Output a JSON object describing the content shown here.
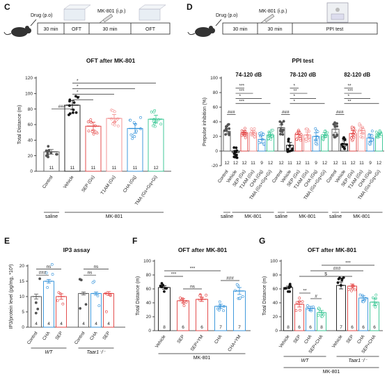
{
  "colors": {
    "control": "#555555",
    "vehicle": "#111111",
    "sep": "#e23b3b",
    "t1am": "#f28a8a",
    "cha": "#2d8fd9",
    "tma": "#2ec48e",
    "cha_ym": "#2d8fd9"
  },
  "panels": {
    "C": {
      "letter": "C",
      "timeline": {
        "drug_label": "Drug (p.o)",
        "mk_label": "MK-801 (i.p.)",
        "boxes": [
          "30 min",
          "OFT",
          "30 min",
          "OFT"
        ]
      }
    },
    "D": {
      "letter": "D",
      "timeline": {
        "drug_label": "Drug (p.o)",
        "mk_label": "MK-801 (i.p.)",
        "boxes": [
          "30 min",
          "30 min",
          "PPI test"
        ]
      }
    },
    "E": {
      "letter": "E"
    },
    "F": {
      "letter": "F"
    },
    "G": {
      "letter": "G"
    }
  },
  "chart_data": [
    {
      "id": "C",
      "type": "bar",
      "title": "OFT after MK-801",
      "ylabel": "Total Distance (m)",
      "ylim": [
        0,
        120
      ],
      "yticks": [
        0,
        20,
        40,
        60,
        80,
        100,
        120
      ],
      "categories": [
        "Control",
        "Vehicle",
        "SEP (Gs)",
        "T1AM (Gs)",
        "CHA (Gq)",
        "TMA (Gs+Gq+Gi)"
      ],
      "values": [
        25,
        85,
        58,
        68,
        55,
        67
      ],
      "errors": [
        3,
        6,
        5,
        5,
        6,
        5
      ],
      "n": [
        "11",
        "11",
        "11",
        "11",
        "11",
        "12"
      ],
      "color_keys": [
        "control",
        "vehicle",
        "sep",
        "t1am",
        "cha",
        "tma"
      ],
      "groups": [
        {
          "label": "saline",
          "from": 0,
          "to": 0
        },
        {
          "label": "MK-801",
          "from": 1,
          "to": 5
        }
      ],
      "significance": [
        {
          "from": 0,
          "to": 1,
          "label": "###"
        },
        {
          "from": 1,
          "to": 2,
          "label": "**"
        },
        {
          "from": 1,
          "to": 3,
          "label": "*"
        },
        {
          "from": 1,
          "to": 4,
          "label": "*"
        },
        {
          "from": 1,
          "to": 5,
          "label": "*"
        }
      ]
    },
    {
      "id": "D",
      "type": "bar",
      "title": "PPI test",
      "ylabel": "Prepulse inhibition (%)",
      "ylim": [
        -20,
        100
      ],
      "yticks": [
        -20,
        0,
        20,
        40,
        60,
        80,
        100
      ],
      "subgroups": [
        {
          "label": "74-120 dB",
          "categories": [
            "Control",
            "Vehicle",
            "SEP (Gs)",
            "T1AM (Gs)",
            "CHA (Gq)",
            "TMA (Gs+Gq+Gi)"
          ],
          "values": [
            27,
            -2,
            25,
            25,
            16,
            22
          ],
          "errors": [
            4,
            3,
            3,
            3,
            5,
            3
          ],
          "n": [
            "12",
            "12",
            "12",
            "11",
            "9",
            "12"
          ],
          "significance": [
            {
              "from": 0,
              "to": 1,
              "label": "###"
            },
            {
              "from": 1,
              "to": 2,
              "label": "***"
            },
            {
              "from": 1,
              "to": 3,
              "label": "***"
            },
            {
              "from": 1,
              "to": 4,
              "label": "*"
            },
            {
              "from": 1,
              "to": 5,
              "label": "***"
            }
          ]
        },
        {
          "label": "78-120 dB",
          "categories": [
            "Control",
            "Vehicle",
            "SEP (Gs)",
            "T1AM (Gs)",
            "CHA (Gq)",
            "TMA (Gs+Gq+Gi)"
          ],
          "values": [
            32,
            8,
            23,
            22,
            20,
            22
          ],
          "errors": [
            4,
            4,
            4,
            4,
            5,
            3
          ],
          "n": [
            "12",
            "11",
            "12",
            "11",
            "9",
            "12"
          ],
          "significance": [
            {
              "from": 0,
              "to": 1,
              "label": "###"
            },
            {
              "from": 1,
              "to": 2,
              "label": "*"
            },
            {
              "from": 1,
              "to": 3,
              "label": "**"
            },
            {
              "from": 1,
              "to": 4,
              "label": "*"
            },
            {
              "from": 1,
              "to": 5,
              "label": "*"
            }
          ]
        },
        {
          "label": "82-120 dB",
          "categories": [
            "Control",
            "Vehicle",
            "SEP (Gs)",
            "T1AM (Gs)",
            "CHA (Gq)",
            "TMA (Gs+Gq+Gi)"
          ],
          "values": [
            30,
            10,
            24,
            28,
            18,
            22
          ],
          "errors": [
            5,
            4,
            4,
            4,
            5,
            3
          ],
          "n": [
            "12",
            "11",
            "12",
            "11",
            "9",
            "12"
          ],
          "significance": [
            {
              "from": 0,
              "to": 1,
              "label": "###"
            },
            {
              "from": 1,
              "to": 2,
              "label": "**"
            },
            {
              "from": 1,
              "to": 3,
              "label": "***"
            },
            {
              "from": 1,
              "to": 4,
              "label": "*"
            },
            {
              "from": 1,
              "to": 5,
              "label": "**"
            }
          ]
        }
      ],
      "color_keys": [
        "control",
        "vehicle",
        "sep",
        "t1am",
        "cha",
        "tma"
      ],
      "groups": [
        {
          "label": "saline",
          "from": 0,
          "to": 0
        },
        {
          "label": "MK-801",
          "from": 1,
          "to": 5
        }
      ]
    },
    {
      "id": "E",
      "type": "bar",
      "title": "IP3  assay",
      "ylabel": "IP3/protein level (pg/mg, *10³)",
      "ylim": [
        0,
        20
      ],
      "yticks": [
        0,
        5,
        10,
        15,
        20
      ],
      "categories": [
        "Control",
        "CHA",
        "SEP",
        "Control",
        "CHA",
        "SEP"
      ],
      "values": [
        10,
        15,
        10,
        11,
        11,
        11
      ],
      "errors": [
        0.8,
        0.6,
        0.9,
        0.5,
        0.5,
        0.6
      ],
      "n": [
        "4",
        "4",
        "4",
        "4",
        "4",
        "4"
      ],
      "color_keys": [
        "control",
        "cha",
        "sep",
        "control",
        "cha",
        "sep"
      ],
      "genotypes": [
        {
          "label": "WT",
          "from": 0,
          "to": 2
        },
        {
          "label": "Taar1⁻/⁻",
          "from": 3,
          "to": 5
        }
      ],
      "significance": [
        {
          "from": 0,
          "to": 1,
          "label": "###"
        },
        {
          "from": 0,
          "to": 2,
          "label": "ns"
        },
        {
          "from": 3,
          "to": 4,
          "label": "ns"
        },
        {
          "from": 3,
          "to": 5,
          "label": "ns"
        }
      ]
    },
    {
      "id": "F",
      "type": "bar",
      "title": "OFT after MK-801",
      "ylabel": "Total Distance (m)",
      "ylim": [
        0,
        100
      ],
      "yticks": [
        0,
        20,
        40,
        60,
        80,
        100
      ],
      "categories": [
        "Vehicle",
        "SEP",
        "SEP+YM",
        "CHA",
        "CHA+YM"
      ],
      "values": [
        62,
        43,
        45,
        35,
        57
      ],
      "errors": [
        2.5,
        3,
        3,
        3,
        5
      ],
      "n": [
        "8",
        "6",
        "6",
        "7",
        "7"
      ],
      "color_keys": [
        "vehicle",
        "sep",
        "sep",
        "cha",
        "cha_ym"
      ],
      "groups": [
        {
          "label": "MK-801",
          "from": 0,
          "to": 4
        }
      ],
      "significance": [
        {
          "from": 0,
          "to": 1,
          "label": "***"
        },
        {
          "from": 1,
          "to": 2,
          "label": "ns"
        },
        {
          "from": 0,
          "to": 3,
          "label": "***"
        },
        {
          "from": 3,
          "to": 4,
          "label": "###"
        }
      ]
    },
    {
      "id": "G",
      "type": "bar",
      "title": "OFT after MK-801",
      "ylabel": "Total Distance (m)",
      "ylim": [
        0,
        100
      ],
      "yticks": [
        0,
        20,
        40,
        60,
        80,
        100
      ],
      "categories": [
        "Vehicle",
        "SEP",
        "CHA",
        "SEP+CHA",
        "Vehicle",
        "SEP",
        "CHA",
        "SEP+CHA"
      ],
      "values": [
        62,
        38,
        32,
        26,
        65,
        64,
        47,
        41
      ],
      "errors": [
        2,
        4,
        3,
        3,
        5,
        3,
        3,
        5
      ],
      "n": [
        "8",
        "6",
        "6",
        "8",
        "7",
        "6",
        "6",
        "6"
      ],
      "color_keys": [
        "vehicle",
        "sep",
        "cha",
        "tma",
        "vehicle",
        "sep",
        "cha",
        "tma"
      ],
      "genotypes": [
        {
          "label": "WT",
          "from": 0,
          "to": 3
        },
        {
          "label": "Taar1⁻/⁻",
          "from": 4,
          "to": 7
        }
      ],
      "groups": [
        {
          "label": "MK-801",
          "from": 0,
          "to": 7
        }
      ],
      "significance": [
        {
          "from": 1,
          "to": 2,
          "label": "**"
        },
        {
          "from": 2,
          "to": 3,
          "label": "#"
        },
        {
          "from": 1,
          "to": 5,
          "label": "$"
        },
        {
          "from": 2,
          "to": 6,
          "label": "###"
        },
        {
          "from": 3,
          "to": 7,
          "label": "***"
        }
      ]
    }
  ]
}
